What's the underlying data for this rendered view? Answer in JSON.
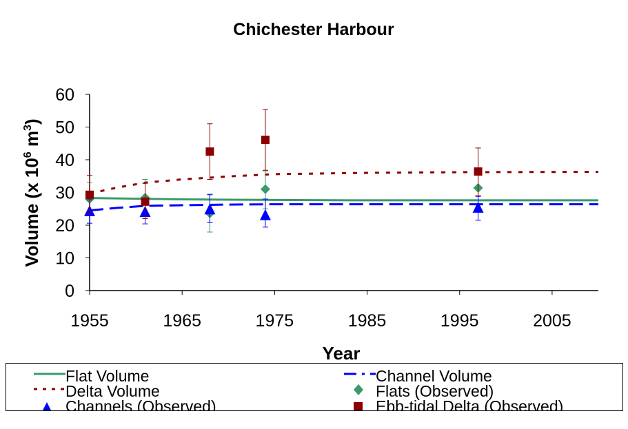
{
  "chart_data": {
    "type": "line",
    "title": "Chichester Harbour",
    "xlabel": "Year",
    "ylabel": "Volume (x 10^6 m^3)",
    "ylabel_parts": {
      "main": "Volume (x 10",
      "exp1": "6",
      "mid": " m",
      "exp2": "3",
      "end": ")"
    },
    "xlim": [
      1955,
      2010
    ],
    "ylim": [
      0,
      60
    ],
    "xticks": [
      1955,
      1965,
      1975,
      1985,
      1995,
      2005
    ],
    "yticks": [
      0,
      10,
      20,
      30,
      40,
      50,
      60
    ],
    "grid": false,
    "legend_placement": "bottom",
    "series": [
      {
        "name": "Flat Volume",
        "kind": "line",
        "style": "solid",
        "color": "#3a9a6a",
        "x": [
          1955,
          1960,
          1965,
          1970,
          1975,
          1985,
          1995,
          2010
        ],
        "y": [
          28.3,
          28.1,
          27.9,
          27.8,
          27.7,
          27.6,
          27.6,
          27.6
        ]
      },
      {
        "name": "Channel Volume",
        "kind": "line",
        "style": "dashed",
        "color": "#0000ff",
        "x": [
          1955,
          1958,
          1961,
          1965,
          1970,
          1975,
          1985,
          2010
        ],
        "y": [
          24.5,
          25.3,
          25.9,
          26.1,
          26.3,
          26.4,
          26.4,
          26.4
        ]
      },
      {
        "name": "Delta Volume",
        "kind": "line",
        "style": "dotted",
        "color": "#8b0000",
        "x": [
          1955,
          1958,
          1961,
          1965,
          1970,
          1975,
          1985,
          1995,
          2010
        ],
        "y": [
          29.7,
          31.5,
          33.0,
          34.0,
          34.9,
          35.6,
          36.0,
          36.2,
          36.3
        ]
      },
      {
        "name": "Flats (Observed)",
        "kind": "scatter",
        "marker": "diamond",
        "color": "#3a9a6a",
        "x": [
          1955,
          1961,
          1968,
          1974,
          1997
        ],
        "y": [
          28.0,
          28.4,
          23.6,
          31.0,
          31.4
        ],
        "err_low": [
          24.0,
          22.0,
          17.9,
          25.0,
          25.5
        ],
        "err_high": [
          33.0,
          34.0,
          29.5,
          36.6,
          37.0
        ]
      },
      {
        "name": "Channels (Observed)",
        "kind": "scatter",
        "marker": "triangle",
        "color": "#0000ff",
        "x": [
          1955,
          1961,
          1968,
          1974,
          1997
        ],
        "y": [
          24.2,
          24.0,
          24.8,
          23.0,
          25.3
        ],
        "err_low": [
          20.6,
          20.4,
          20.8,
          19.4,
          21.5
        ],
        "err_high": [
          27.8,
          27.6,
          29.3,
          28.0,
          28.8
        ]
      },
      {
        "name": "Ebb-tidal Delta (Observed)",
        "kind": "scatter",
        "marker": "square",
        "color": "#8b0000",
        "x": [
          1955,
          1961,
          1968,
          1974,
          1997
        ],
        "y": [
          29.3,
          27.2,
          42.5,
          46.1,
          36.4
        ],
        "err_low": [
          23.5,
          22.0,
          34.0,
          36.8,
          29.0
        ],
        "err_high": [
          35.2,
          32.8,
          51.0,
          55.4,
          43.6
        ]
      }
    ]
  }
}
